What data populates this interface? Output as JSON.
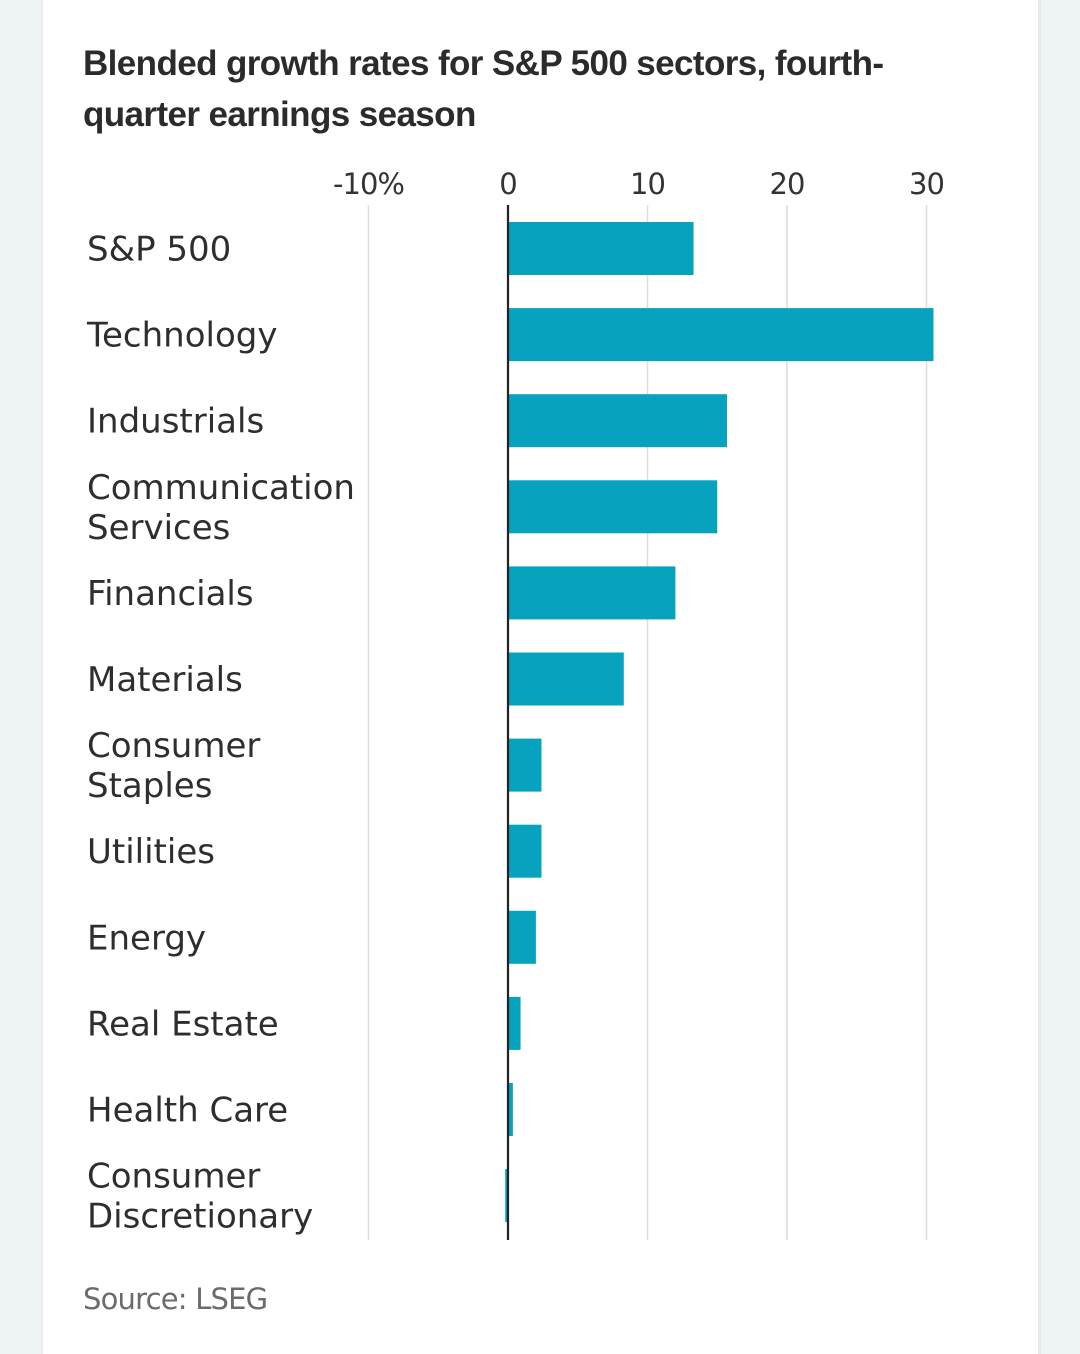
{
  "chart_data": {
    "type": "bar",
    "orientation": "horizontal",
    "title": "Blended growth rates for S&P 500 sectors, fourth-quarter earnings season",
    "xlabel": "",
    "ylabel": "",
    "xlim": [
      -10,
      30
    ],
    "x_ticks": [
      -10,
      0,
      10,
      20,
      30
    ],
    "x_tick_labels": [
      "-10%",
      "0",
      "10",
      "20",
      "30"
    ],
    "grid": true,
    "categories": [
      [
        "S&P 500"
      ],
      [
        "Technology"
      ],
      [
        "Industrials"
      ],
      [
        "Communication",
        "Services"
      ],
      [
        "Financials"
      ],
      [
        "Materials"
      ],
      [
        "Consumer",
        "Staples"
      ],
      [
        "Utilities"
      ],
      [
        "Energy"
      ],
      [
        "Real Estate"
      ],
      [
        "Health Care"
      ],
      [
        "Consumer",
        "Discretionary"
      ]
    ],
    "values": [
      13.3,
      30.5,
      15.7,
      15.0,
      12.0,
      8.3,
      2.4,
      2.4,
      2.0,
      0.9,
      0.35,
      -0.2
    ],
    "bar_color": "#06a2be",
    "zero_line_color": "#222222",
    "grid_color": "#dcdcdc",
    "source": "Source: LSEG"
  },
  "title_text": "Blended growth rates for S&P 500 sectors, fourth-quarter earnings season",
  "source_text": "Source: LSEG"
}
